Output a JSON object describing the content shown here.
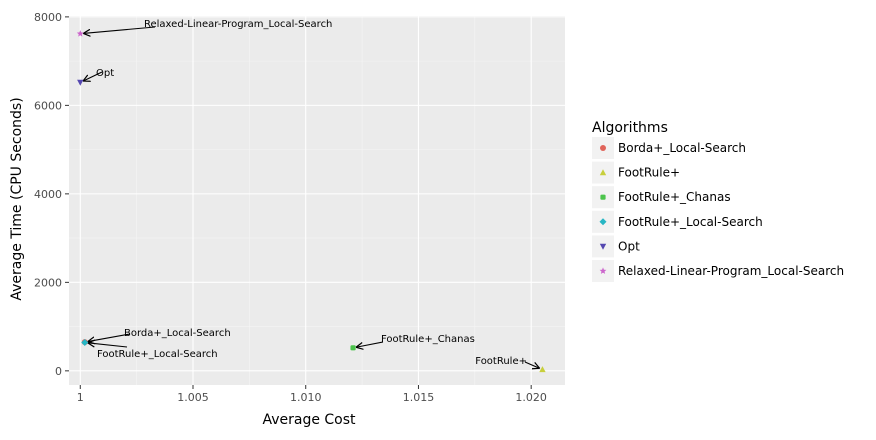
{
  "chart_data": {
    "type": "scatter",
    "xlabel": "Average Cost",
    "ylabel": "Average Time (CPU Seconds)",
    "xlim": [
      0.9995,
      1.0215
    ],
    "ylim": [
      -320,
      8020
    ],
    "x_ticks": [
      1,
      1.005,
      1.01,
      1.015,
      1.02
    ],
    "x_tick_labels": [
      "1",
      "1.005",
      "1.010",
      "1.015",
      "1.020"
    ],
    "y_ticks": [
      0,
      2000,
      4000,
      6000,
      8000
    ],
    "y_tick_labels": [
      "0",
      "2000",
      "4000",
      "6000",
      "8000"
    ],
    "grid": true,
    "legend": {
      "title": "Algorithms",
      "placement": "right"
    },
    "series": [
      {
        "name": "Borda+_Local-Search",
        "color": "#e0645a",
        "marker": "circle",
        "x": 1.0002,
        "y": 650
      },
      {
        "name": "FootRule+",
        "color": "#c8cf3c",
        "marker": "triangle",
        "x": 1.0205,
        "y": 30
      },
      {
        "name": "FootRule+_Chanas",
        "color": "#4cc44c",
        "marker": "square",
        "x": 1.0121,
        "y": 520
      },
      {
        "name": "FootRule+_Local-Search",
        "color": "#27b6c4",
        "marker": "diamond",
        "x": 1.0002,
        "y": 640
      },
      {
        "name": "Opt",
        "color": "#5548b0",
        "marker": "triangle-down",
        "x": 1.0,
        "y": 6520
      },
      {
        "name": "Relaxed-Linear-Program_Local-Search",
        "color": "#cc66cc",
        "marker": "star",
        "x": 1.0,
        "y": 7620
      }
    ],
    "annotations": [
      {
        "text": "Relaxed-Linear-Program_Local-Search",
        "target": 5
      },
      {
        "text": "Opt",
        "target": 4
      },
      {
        "text": "Borda+_Local-Search",
        "target": 0
      },
      {
        "text": "FootRule+_Local-Search",
        "target": 3
      },
      {
        "text": "FootRule+_Chanas",
        "target": 2
      },
      {
        "text": "FootRule+",
        "target": 1
      }
    ]
  }
}
